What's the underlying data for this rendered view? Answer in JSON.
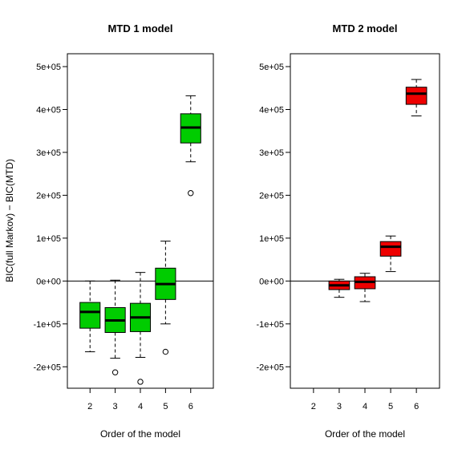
{
  "chart_data": [
    {
      "type": "boxplot",
      "title": "MTD 1 model",
      "xlabel": "Order of the model",
      "ylabel": "BIC(full Markov) − BIC(MTD)",
      "categories": [
        "2",
        "3",
        "4",
        "5",
        "6"
      ],
      "ylim": [
        -250000,
        530000
      ],
      "yticks": [
        -200000,
        -100000,
        0,
        100000,
        200000,
        300000,
        400000,
        500000
      ],
      "ytick_labels": [
        "-2e+05",
        "-1e+05",
        "0e+00",
        "1e+05",
        "2e+05",
        "3e+05",
        "4e+05",
        "5e+05"
      ],
      "reference_line": 0,
      "fill_color": "#00cc00",
      "boxes": [
        {
          "category": "2",
          "whisker_low": -165000,
          "q1": -110000,
          "median": -72000,
          "q3": -50000,
          "whisker_high": 0,
          "outliers": []
        },
        {
          "category": "3",
          "whisker_low": -180000,
          "q1": -120000,
          "median": -92000,
          "q3": -62000,
          "whisker_high": 2000,
          "outliers": [
            -213000
          ]
        },
        {
          "category": "4",
          "whisker_low": -178000,
          "q1": -118000,
          "median": -85000,
          "q3": -52000,
          "whisker_high": 20000,
          "outliers": [
            -235000
          ]
        },
        {
          "category": "5",
          "whisker_low": -100000,
          "q1": -43000,
          "median": -7000,
          "q3": 30000,
          "whisker_high": 93000,
          "outliers": [
            -165000
          ]
        },
        {
          "category": "6",
          "whisker_low": 278000,
          "q1": 322000,
          "median": 358000,
          "q3": 390000,
          "whisker_high": 432000,
          "outliers": [
            205000
          ]
        }
      ]
    },
    {
      "type": "boxplot",
      "title": "MTD 2 model",
      "xlabel": "Order of the model",
      "ylabel": "",
      "categories": [
        "2",
        "3",
        "4",
        "5",
        "6"
      ],
      "ylim": [
        -250000,
        530000
      ],
      "yticks": [
        -200000,
        -100000,
        0,
        100000,
        200000,
        300000,
        400000,
        500000
      ],
      "ytick_labels": [
        "-2e+05",
        "-1e+05",
        "0e+00",
        "1e+05",
        "2e+05",
        "3e+05",
        "4e+05",
        "5e+05"
      ],
      "reference_line": 0,
      "fill_color": "#ee0000",
      "boxes": [
        {
          "category": "3",
          "whisker_low": -38000,
          "q1": -20000,
          "median": -10000,
          "q3": 0,
          "whisker_high": 4000,
          "outliers": []
        },
        {
          "category": "4",
          "whisker_low": -48000,
          "q1": -18000,
          "median": -2000,
          "q3": 10000,
          "whisker_high": 18000,
          "outliers": []
        },
        {
          "category": "5",
          "whisker_low": 22000,
          "q1": 58000,
          "median": 80000,
          "q3": 92000,
          "whisker_high": 105000,
          "outliers": []
        },
        {
          "category": "6",
          "whisker_low": 385000,
          "q1": 412000,
          "median": 437000,
          "q3": 452000,
          "whisker_high": 470000,
          "outliers": []
        }
      ]
    }
  ]
}
